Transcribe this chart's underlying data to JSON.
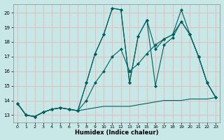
{
  "xlabel": "Humidex (Indice chaleur)",
  "bg_color": "#c8e8e8",
  "grid_color": "#e8b8b8",
  "line_color": "#006060",
  "xlim": [
    -0.5,
    23.5
  ],
  "ylim": [
    12.5,
    20.6
  ],
  "xticks": [
    0,
    1,
    2,
    3,
    4,
    5,
    6,
    7,
    8,
    9,
    10,
    11,
    12,
    13,
    14,
    15,
    16,
    17,
    18,
    19,
    20,
    21,
    22,
    23
  ],
  "yticks": [
    13,
    14,
    15,
    16,
    17,
    18,
    19,
    20
  ],
  "series": [
    {
      "x": [
        0,
        1,
        2,
        3,
        4,
        5,
        6,
        7,
        8,
        9,
        10,
        11,
        12,
        13,
        14,
        15,
        16,
        17,
        18,
        19,
        20,
        21,
        22,
        23
      ],
      "y": [
        13.8,
        13.0,
        12.9,
        13.2,
        13.4,
        13.5,
        13.4,
        13.3,
        13.4,
        13.5,
        13.6,
        13.6,
        13.6,
        13.6,
        13.7,
        13.8,
        13.9,
        14.0,
        14.0,
        14.0,
        14.1,
        14.1,
        14.1,
        14.2
      ],
      "marker": false
    },
    {
      "x": [
        0,
        1,
        2,
        3,
        4,
        5,
        6,
        7,
        8,
        9,
        10,
        11,
        12,
        13,
        14,
        15,
        16,
        17,
        18,
        19,
        20,
        21,
        22,
        23
      ],
      "y": [
        13.8,
        13.0,
        12.9,
        13.2,
        13.4,
        13.5,
        13.4,
        13.3,
        15.2,
        17.2,
        18.5,
        20.3,
        20.2,
        15.2,
        18.4,
        19.5,
        17.5,
        18.2,
        18.5,
        20.2,
        18.5,
        17.0,
        15.2,
        14.2
      ],
      "marker": true
    },
    {
      "x": [
        0,
        1,
        2,
        3,
        4,
        5,
        6,
        7,
        8,
        9,
        10,
        11,
        12,
        13,
        14,
        15,
        16,
        17,
        18,
        19,
        20,
        21,
        22,
        23
      ],
      "y": [
        13.8,
        13.0,
        12.9,
        13.2,
        13.4,
        13.5,
        13.4,
        13.3,
        15.2,
        17.2,
        18.5,
        20.3,
        20.2,
        15.2,
        18.4,
        19.5,
        15.0,
        17.8,
        18.3,
        19.4,
        18.5,
        17.0,
        15.2,
        14.2
      ],
      "marker": true
    },
    {
      "x": [
        0,
        1,
        2,
        3,
        4,
        5,
        6,
        7,
        8,
        9,
        10,
        11,
        12,
        13,
        14,
        15,
        16,
        17,
        18,
        19,
        20,
        21,
        22,
        23
      ],
      "y": [
        13.8,
        13.0,
        12.9,
        13.2,
        13.4,
        13.5,
        13.4,
        13.3,
        14.0,
        15.2,
        16.0,
        17.0,
        17.5,
        16.0,
        16.5,
        17.2,
        17.8,
        18.2,
        18.5,
        19.4,
        18.5,
        17.0,
        15.2,
        14.2
      ],
      "marker": true
    }
  ]
}
